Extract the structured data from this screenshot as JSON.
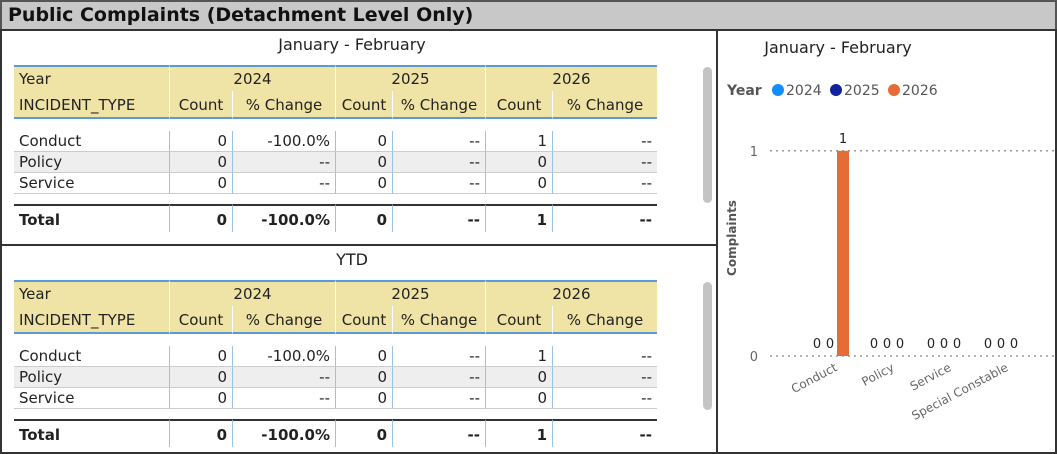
{
  "header": {
    "title": "Public Complaints (Detachment Level Only)"
  },
  "tables": [
    {
      "title": "January - February",
      "year_label": "Year",
      "years": [
        2024,
        2025,
        2026
      ],
      "columns": [
        "INCIDENT_TYPE",
        "Count",
        "% Change",
        "Count",
        "% Change",
        "Count",
        "% Change"
      ],
      "rows": [
        [
          "Conduct",
          0,
          "-100.0%",
          0,
          "--",
          1,
          "--"
        ],
        [
          "Policy",
          0,
          "--",
          0,
          "--",
          0,
          "--"
        ],
        [
          "Service",
          0,
          "--",
          0,
          "--",
          0,
          "--"
        ]
      ],
      "total": [
        "Total",
        0,
        "-100.0%",
        0,
        "--",
        1,
        "--"
      ]
    },
    {
      "title": "YTD",
      "year_label": "Year",
      "years": [
        2024,
        2025,
        2026
      ],
      "columns": [
        "INCIDENT_TYPE",
        "Count",
        "% Change",
        "Count",
        "% Change",
        "Count",
        "% Change"
      ],
      "rows": [
        [
          "Conduct",
          0,
          "-100.0%",
          0,
          "--",
          1,
          "--"
        ],
        [
          "Policy",
          0,
          "--",
          0,
          "--",
          0,
          "--"
        ],
        [
          "Service",
          0,
          "--",
          0,
          "--",
          0,
          "--"
        ]
      ],
      "total": [
        "Total",
        0,
        "-100.0%",
        0,
        "--",
        1,
        "--"
      ]
    }
  ],
  "chart_data": {
    "type": "bar",
    "title": "January - February",
    "legend_title": "Year",
    "ylabel": "Complaints",
    "categories": [
      "Conduct",
      "Policy",
      "Service",
      "Special Constable"
    ],
    "series": [
      {
        "name": "2024",
        "color": "#118dff",
        "values": [
          0,
          0,
          0,
          0
        ]
      },
      {
        "name": "2025",
        "color": "#12239e",
        "values": [
          0,
          0,
          0,
          0
        ]
      },
      {
        "name": "2026",
        "color": "#e66c37",
        "values": [
          1,
          0,
          0,
          0
        ]
      }
    ],
    "ylim": [
      0,
      1.15
    ],
    "yticks": [
      0,
      1
    ],
    "grid": true
  }
}
